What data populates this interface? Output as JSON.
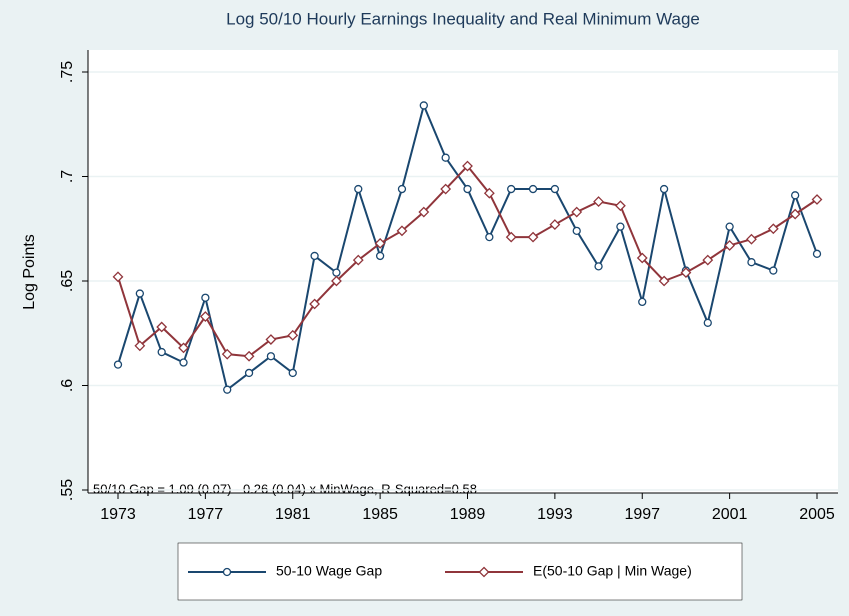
{
  "chart_data": {
    "type": "line",
    "title": "Log 50/10 Hourly Earnings Inequality and Real Minimum Wage",
    "y_label": "Log Points",
    "annotation": "50/10 Gap = 1.09 (0.07) - 0.26 (0.04) x MinWage, R-Squared=0.58",
    "x": [
      1973,
      1974,
      1975,
      1976,
      1977,
      1978,
      1979,
      1980,
      1981,
      1982,
      1983,
      1984,
      1985,
      1986,
      1987,
      1988,
      1989,
      1990,
      1991,
      1992,
      1993,
      1994,
      1995,
      1996,
      1997,
      1998,
      1999,
      2000,
      2001,
      2002,
      2003,
      2004,
      2005
    ],
    "xlim": [
      1973,
      2005
    ],
    "xticks": [
      1973,
      1977,
      1981,
      1985,
      1989,
      1993,
      1997,
      2001,
      2005
    ],
    "ylim": [
      0.55,
      0.75
    ],
    "yticks": [
      {
        "value": 0.55,
        "label": ".55"
      },
      {
        "value": 0.6,
        "label": ".6"
      },
      {
        "value": 0.65,
        "label": ".65"
      },
      {
        "value": 0.7,
        "label": ".7"
      },
      {
        "value": 0.75,
        "label": ".75"
      }
    ],
    "grid": true,
    "series": [
      {
        "name": "50-10 Wage Gap",
        "color": "#1a476f",
        "marker": "circle",
        "values": [
          0.61,
          0.644,
          0.616,
          0.611,
          0.642,
          0.598,
          0.606,
          0.614,
          0.606,
          0.662,
          0.654,
          0.694,
          0.662,
          0.694,
          0.734,
          0.709,
          0.694,
          0.671,
          0.694,
          0.694,
          0.694,
          0.674,
          0.657,
          0.676,
          0.64,
          0.694,
          0.655,
          0.63,
          0.676,
          0.659,
          0.655,
          0.691,
          0.663
        ]
      },
      {
        "name": "E(50-10 Gap | Min Wage)",
        "color": "#90353b",
        "marker": "diamond",
        "values": [
          0.652,
          0.619,
          0.628,
          0.618,
          0.633,
          0.615,
          0.614,
          0.622,
          0.624,
          0.639,
          0.65,
          0.66,
          0.668,
          0.674,
          0.683,
          0.694,
          0.705,
          0.692,
          0.671,
          0.671,
          0.677,
          0.683,
          0.688,
          0.686,
          0.661,
          0.65,
          0.654,
          0.66,
          0.667,
          0.67,
          0.675,
          0.682,
          0.689
        ]
      }
    ]
  }
}
